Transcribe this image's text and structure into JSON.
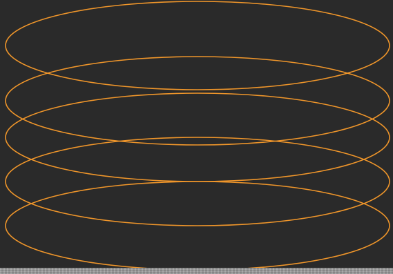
{
  "canvas": {
    "background": "#2a2a2a",
    "stroke_color": "#f0962a",
    "shape": "ellipse",
    "ellipse_count": 5
  },
  "texture_strip": {
    "color": "#9a9a9a",
    "pattern": "grainy-stone"
  }
}
